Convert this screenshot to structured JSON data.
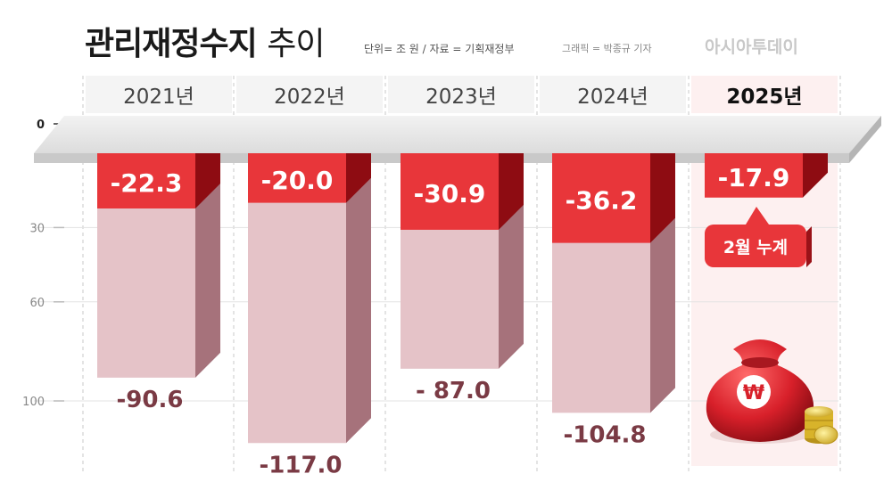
{
  "title_bold": "관리재정수지",
  "title_light": "추이",
  "unit_source": "단위= 조 원 / 자료 = 기획재정부",
  "credit": "그래픽 = 박종규 기자",
  "brand": "아시아투데이",
  "annotation": "2월 누계",
  "colors": {
    "feb_cumulative": "#e8363a",
    "annual": "#e5c3c8",
    "annual_label": "#7a3a44",
    "highlight_bg": "#fdf0f0"
  },
  "icons": [
    "money-bag-icon",
    "won-sign-icon",
    "coin-stack-icon"
  ],
  "chart_data": {
    "type": "bar",
    "title": "관리재정수지 추이",
    "unit": "조 원",
    "categories": [
      "2021년",
      "2022년",
      "2023년",
      "2024년",
      "2025년"
    ],
    "yticks": [
      0,
      30,
      60,
      100
    ],
    "ylim": [
      0,
      120
    ],
    "series": [
      {
        "values": [
          -90.6,
          -117.0,
          -87.0,
          -104.8,
          null
        ],
        "labels": [
          "-90.6",
          "-117.0",
          "- 87.0",
          "-104.8",
          ""
        ]
      },
      {
        "values": [
          -22.3,
          -20.0,
          -30.9,
          -36.2,
          -17.9
        ],
        "labels": [
          "-22.3",
          "-20.0",
          "-30.9",
          "-36.2",
          "-17.9"
        ]
      }
    ],
    "highlight_category": "2025년"
  }
}
